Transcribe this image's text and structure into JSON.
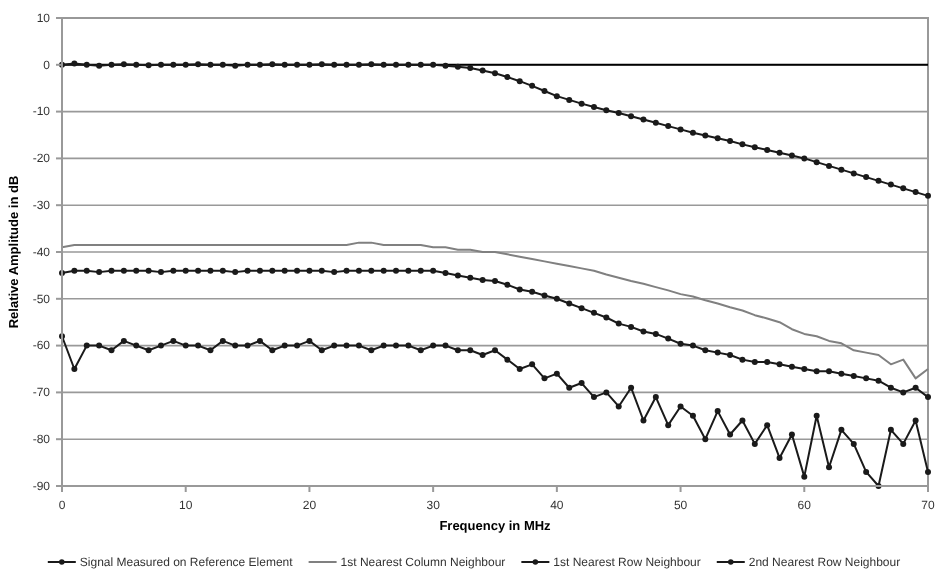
{
  "chart_data": {
    "type": "line",
    "xlabel": "Frequency in MHz",
    "ylabel": "Relative Amplitude in dB",
    "xlim": [
      0,
      70
    ],
    "xticks": [
      0,
      10,
      20,
      30,
      40,
      50,
      60,
      70
    ],
    "ylim": [
      -90,
      10
    ],
    "yticks": [
      {
        "value": 10,
        "label": "10"
      },
      {
        "value": 0,
        "label": "0"
      },
      {
        "value": -10,
        "label": "-10"
      },
      {
        "value": -20,
        "label": "-20"
      },
      {
        "value": -30,
        "label": "-30"
      },
      {
        "value": -40,
        "label": "-40"
      },
      {
        "value": -50,
        "label": "-50"
      },
      {
        "value": -60,
        "label": "-60"
      },
      {
        "value": -70,
        "label": "-70"
      },
      {
        "value": -80,
        "label": "-80"
      },
      {
        "value": -90,
        "label": "-90"
      }
    ],
    "grid": "y",
    "legend": "bottom",
    "line_style": "solid",
    "ref_lines": [
      {
        "axis": "y",
        "value": 0,
        "color": "#000000"
      }
    ],
    "x": [
      0,
      1,
      2,
      3,
      4,
      5,
      6,
      7,
      8,
      9,
      10,
      11,
      12,
      13,
      14,
      15,
      16,
      17,
      18,
      19,
      20,
      21,
      22,
      23,
      24,
      25,
      26,
      27,
      28,
      29,
      30,
      31,
      32,
      33,
      34,
      35,
      36,
      37,
      38,
      39,
      40,
      41,
      42,
      43,
      44,
      45,
      46,
      47,
      48,
      49,
      50,
      51,
      52,
      53,
      54,
      55,
      56,
      57,
      58,
      59,
      60,
      61,
      62,
      63,
      64,
      65,
      66,
      67,
      68,
      69,
      70
    ],
    "series": [
      {
        "name": "Signal Measured on Reference Element",
        "color": "#1a1a1a",
        "marker": "circle",
        "values": [
          0,
          0.3,
          0,
          -0.2,
          0,
          0.1,
          0,
          -0.1,
          0,
          0,
          0,
          0.1,
          0,
          0,
          -0.2,
          0,
          0,
          0.1,
          0,
          0,
          0,
          0.1,
          0,
          0,
          0,
          0.1,
          0,
          0,
          0,
          0,
          0,
          -0.2,
          -0.4,
          -0.7,
          -1.2,
          -1.8,
          -2.6,
          -3.5,
          -4.5,
          -5.6,
          -6.7,
          -7.5,
          -8.3,
          -9,
          -9.7,
          -10.3,
          -11,
          -11.7,
          -12.4,
          -13.1,
          -13.8,
          -14.5,
          -15.1,
          -15.7,
          -16.3,
          -17,
          -17.6,
          -18.2,
          -18.8,
          -19.4,
          -20,
          -20.8,
          -21.6,
          -22.4,
          -23.2,
          -24,
          -24.8,
          -25.6,
          -26.4,
          -27.2,
          -28
        ]
      },
      {
        "name": "1st Nearest Column Neighbour",
        "color": "#808080",
        "marker": "none",
        "values": [
          -39,
          -38.5,
          -38.5,
          -38.5,
          -38.5,
          -38.5,
          -38.5,
          -38.5,
          -38.5,
          -38.5,
          -38.5,
          -38.5,
          -38.5,
          -38.5,
          -38.5,
          -38.5,
          -38.5,
          -38.5,
          -38.5,
          -38.5,
          -38.5,
          -38.5,
          -38.5,
          -38.5,
          -38,
          -38,
          -38.5,
          -38.5,
          -38.5,
          -38.5,
          -39,
          -39,
          -39.5,
          -39.5,
          -40,
          -40,
          -40.5,
          -41,
          -41.5,
          -42,
          -42.5,
          -43,
          -43.5,
          -44,
          -44.8,
          -45.5,
          -46.2,
          -46.8,
          -47.5,
          -48.2,
          -49,
          -49.5,
          -50.3,
          -51,
          -51.8,
          -52.5,
          -53.5,
          -54.2,
          -55,
          -56.5,
          -57.5,
          -58,
          -59,
          -59.5,
          -61,
          -61.5,
          -62,
          -64,
          -63,
          -67,
          -65
        ]
      },
      {
        "name": "1st Nearest Row Neighbour",
        "color": "#1a1a1a",
        "marker": "circle",
        "values": [
          -44.5,
          -44,
          -44,
          -44.3,
          -44,
          -44,
          -44,
          -44,
          -44.3,
          -44,
          -44,
          -44,
          -44,
          -44,
          -44.3,
          -44,
          -44,
          -44,
          -44,
          -44,
          -44,
          -44,
          -44.3,
          -44,
          -44,
          -44,
          -44,
          -44,
          -44,
          -44,
          -44,
          -44.5,
          -45,
          -45.5,
          -46,
          -46.2,
          -47,
          -48,
          -48.5,
          -49.3,
          -50,
          -51,
          -52,
          -53,
          -54,
          -55.3,
          -56,
          -57,
          -57.5,
          -58.5,
          -59.6,
          -60,
          -61,
          -61.5,
          -62,
          -63,
          -63.5,
          -63.5,
          -64,
          -64.5,
          -65,
          -65.5,
          -65.5,
          -66,
          -66.5,
          -67,
          -67.5,
          -69,
          -70,
          -69,
          -71
        ]
      },
      {
        "name": "2nd Nearest Row Neighbour",
        "color": "#1a1a1a",
        "marker": "circle",
        "values": [
          -58,
          -65,
          -60,
          -60,
          -61,
          -59,
          -60,
          -61,
          -60,
          -59,
          -60,
          -60,
          -61,
          -59,
          -60,
          -60,
          -59,
          -61,
          -60,
          -60,
          -59,
          -61,
          -60,
          -60,
          -60,
          -61,
          -60,
          -60,
          -60,
          -61,
          -60,
          -60,
          -61,
          -61,
          -62,
          -61,
          -63,
          -65,
          -64,
          -67,
          -66,
          -69,
          -68,
          -71,
          -70,
          -73,
          -69,
          -76,
          -71,
          -77,
          -73,
          -75,
          -80,
          -74,
          -79,
          -76,
          -81,
          -77,
          -84,
          -79,
          -88,
          -75,
          -86,
          -78,
          -81,
          -87,
          -90,
          -78,
          -81,
          -76,
          -87
        ]
      }
    ]
  }
}
